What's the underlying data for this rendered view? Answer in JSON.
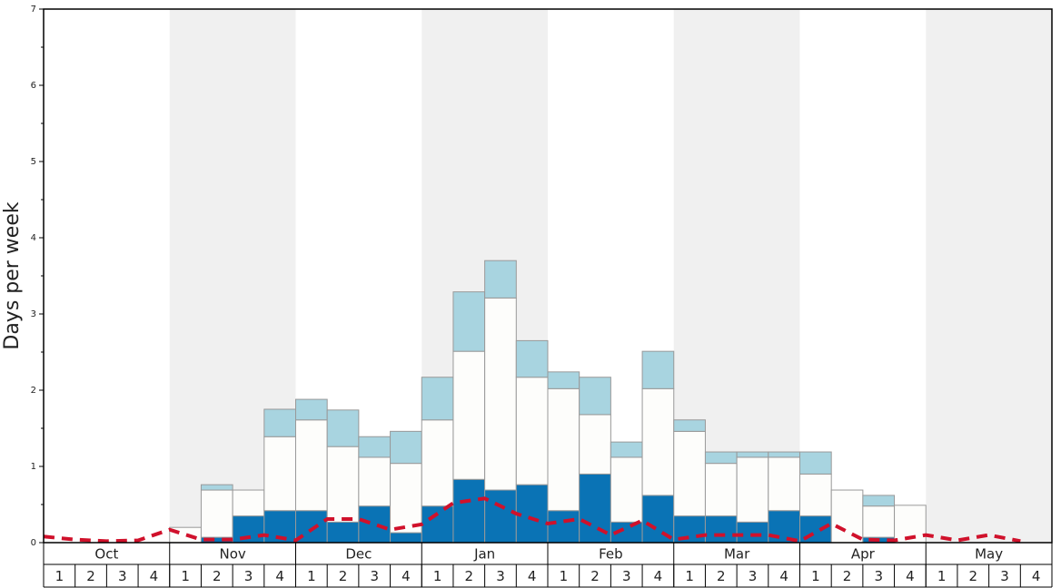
{
  "chart_data": {
    "type": "bar",
    "stacked": true,
    "y_label": "Days per week",
    "months": [
      "Oct",
      "Nov",
      "Dec",
      "Jan",
      "Feb",
      "Mar",
      "Apr",
      "May"
    ],
    "categories": [
      "1",
      "2",
      "3",
      "4",
      "1",
      "2",
      "3",
      "4",
      "1",
      "2",
      "3",
      "4",
      "1",
      "2",
      "3",
      "4",
      "1",
      "2",
      "3",
      "4",
      "1",
      "2",
      "3",
      "4",
      "1",
      "2",
      "3",
      "4",
      "1",
      "2",
      "3",
      "4"
    ],
    "series": [
      {
        "color": "#0a73b5",
        "values": [
          0,
          0,
          0,
          0,
          0,
          0.07,
          0.35,
          0.42,
          0.42,
          0.27,
          0.48,
          0.13,
          0.48,
          0.83,
          0.69,
          0.76,
          0.42,
          0.9,
          0.27,
          0.62,
          0.35,
          0.35,
          0.27,
          0.42,
          0.35,
          0,
          0.07,
          0,
          0,
          0,
          0,
          0
        ]
      },
      {
        "color": "#fdfdfb",
        "values": [
          0,
          0,
          0,
          0,
          0.2,
          0.62,
          0.34,
          0.97,
          1.19,
          0.99,
          0.64,
          0.91,
          1.13,
          1.68,
          2.52,
          1.41,
          1.6,
          0.78,
          0.85,
          1.4,
          1.11,
          0.69,
          0.85,
          0.7,
          0.55,
          0.69,
          0.41,
          0.49,
          0,
          0,
          0,
          0
        ]
      },
      {
        "color": "#a8d4e0",
        "values": [
          0,
          0,
          0,
          0,
          0,
          0.07,
          0,
          0.36,
          0.27,
          0.48,
          0.27,
          0.42,
          0.56,
          0.78,
          0.49,
          0.48,
          0.22,
          0.49,
          0.2,
          0.49,
          0.15,
          0.15,
          0.07,
          0.07,
          0.29,
          0,
          0.14,
          0,
          0,
          0,
          0,
          0
        ]
      }
    ],
    "line": {
      "color": "#d0112b",
      "style": "dashed",
      "values": [
        0.08,
        0.04,
        0.02,
        0.03,
        0.17,
        0.04,
        0.04,
        0.1,
        0.03,
        0.31,
        0.31,
        0.17,
        0.24,
        0.52,
        0.58,
        0.38,
        0.25,
        0.31,
        0.1,
        0.29,
        0.04,
        0.1,
        0.1,
        0.1,
        0.02,
        0.25,
        0.04,
        0.03,
        0.1,
        0.03,
        0.1,
        0.02
      ]
    },
    "ylim": [
      0,
      7
    ],
    "yticks": [
      0,
      1,
      2,
      3,
      4,
      5,
      6,
      7
    ]
  }
}
